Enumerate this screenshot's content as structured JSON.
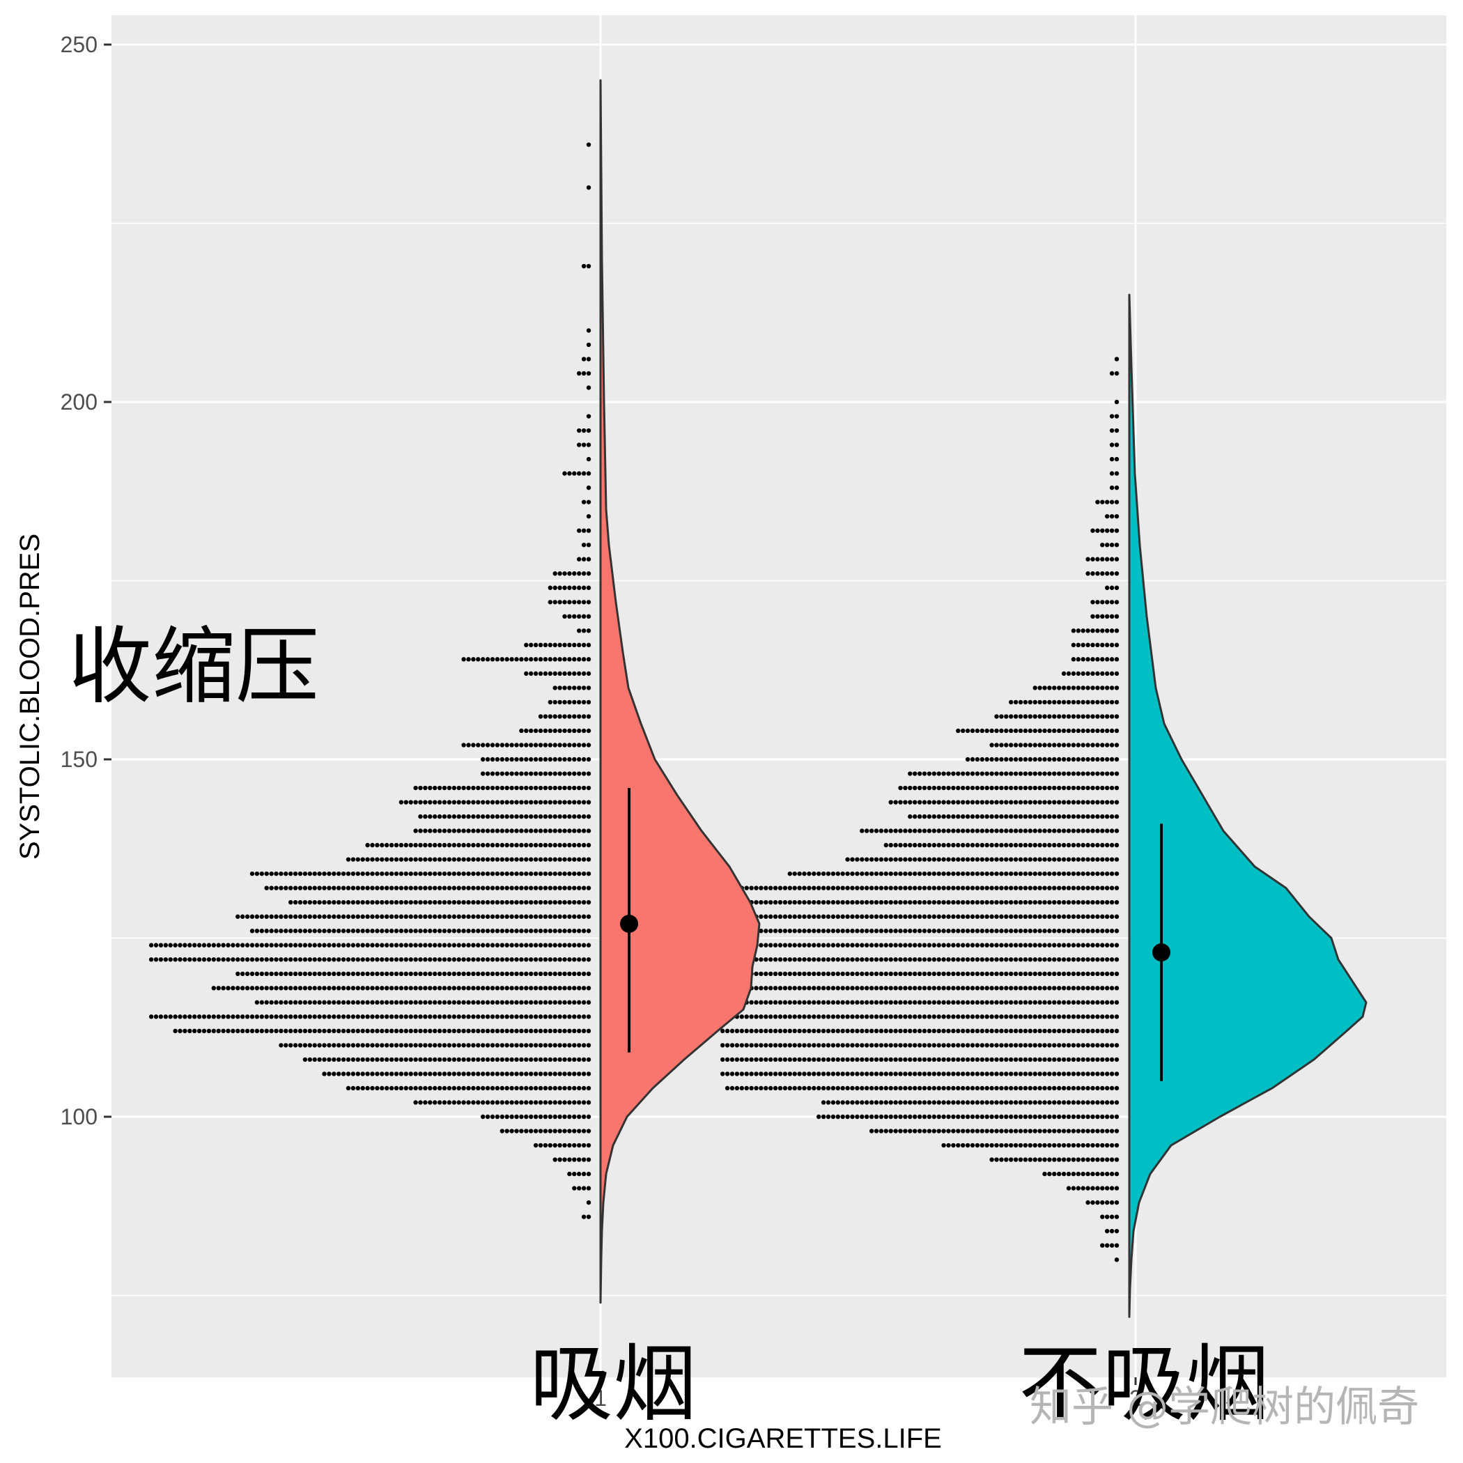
{
  "chart_data": {
    "type": "raincloud (half-violin + dotplot + mean±sd)",
    "title": "",
    "xlabel": "X100.CIGARETTES.LIFE",
    "ylabel": "SYSTOLIC.BLOOD.PRES",
    "y_annotation": "收缩压",
    "ylim": [
      70,
      253
    ],
    "y_ticks": [
      100,
      150,
      200,
      250
    ],
    "x_ticks": [
      "1",
      "2"
    ],
    "categories": [
      "吸烟",
      "不吸烟"
    ],
    "grid": true,
    "series": [
      {
        "name": "吸烟",
        "x_tick": "1",
        "color": "#F8766D",
        "mean": 127,
        "sd_low": 109,
        "sd_high": 146,
        "violin_range": [
          74,
          245
        ],
        "density_peak_value": 123,
        "dot_rows": [
          [
            236,
            1
          ],
          [
            230,
            1
          ],
          [
            219,
            2
          ],
          [
            210,
            1
          ],
          [
            208,
            1
          ],
          [
            206,
            2
          ],
          [
            204,
            3
          ],
          [
            202,
            1
          ],
          [
            198,
            1
          ],
          [
            196,
            3
          ],
          [
            194,
            3
          ],
          [
            192,
            1
          ],
          [
            190,
            6
          ],
          [
            188,
            1
          ],
          [
            186,
            2
          ],
          [
            184,
            1
          ],
          [
            182,
            3
          ],
          [
            180,
            2
          ],
          [
            178,
            3
          ],
          [
            176,
            8
          ],
          [
            174,
            9
          ],
          [
            172,
            9
          ],
          [
            170,
            6
          ],
          [
            168,
            3
          ],
          [
            166,
            14
          ],
          [
            164,
            27
          ],
          [
            162,
            14
          ],
          [
            160,
            8
          ],
          [
            158,
            9
          ],
          [
            156,
            11
          ],
          [
            154,
            15
          ],
          [
            152,
            27
          ],
          [
            150,
            23
          ],
          [
            148,
            23
          ],
          [
            146,
            37
          ],
          [
            144,
            40
          ],
          [
            142,
            36
          ],
          [
            140,
            37
          ],
          [
            138,
            47
          ],
          [
            136,
            51
          ],
          [
            134,
            71
          ],
          [
            132,
            68
          ],
          [
            130,
            63
          ],
          [
            128,
            74
          ],
          [
            126,
            71
          ],
          [
            124,
            92
          ],
          [
            122,
            92
          ],
          [
            120,
            74
          ],
          [
            118,
            79
          ],
          [
            116,
            70
          ],
          [
            114,
            92
          ],
          [
            112,
            87
          ],
          [
            110,
            65
          ],
          [
            108,
            60
          ],
          [
            106,
            56
          ],
          [
            104,
            51
          ],
          [
            102,
            37
          ],
          [
            100,
            23
          ],
          [
            98,
            19
          ],
          [
            96,
            12
          ],
          [
            94,
            8
          ],
          [
            92,
            5
          ],
          [
            90,
            4
          ],
          [
            88,
            1
          ],
          [
            86,
            2
          ]
        ]
      },
      {
        "name": "不吸烟",
        "x_tick": "2",
        "color": "#00BFC4",
        "mean": 123,
        "sd_low": 105,
        "sd_high": 141,
        "violin_range": [
          72,
          215
        ],
        "density_peak_value": 115,
        "dot_rows": [
          [
            206,
            1
          ],
          [
            204,
            2
          ],
          [
            200,
            1
          ],
          [
            198,
            2
          ],
          [
            196,
            2
          ],
          [
            194,
            2
          ],
          [
            192,
            2
          ],
          [
            190,
            2
          ],
          [
            188,
            2
          ],
          [
            186,
            5
          ],
          [
            184,
            3
          ],
          [
            182,
            6
          ],
          [
            180,
            4
          ],
          [
            178,
            7
          ],
          [
            176,
            7
          ],
          [
            174,
            3
          ],
          [
            172,
            6
          ],
          [
            170,
            6
          ],
          [
            168,
            10
          ],
          [
            166,
            10
          ],
          [
            164,
            10
          ],
          [
            162,
            12
          ],
          [
            160,
            18
          ],
          [
            158,
            23
          ],
          [
            156,
            26
          ],
          [
            154,
            34
          ],
          [
            152,
            27
          ],
          [
            150,
            32
          ],
          [
            148,
            44
          ],
          [
            146,
            46
          ],
          [
            144,
            48
          ],
          [
            142,
            44
          ],
          [
            140,
            54
          ],
          [
            138,
            49
          ],
          [
            136,
            57
          ],
          [
            134,
            69
          ],
          [
            132,
            83
          ],
          [
            130,
            83
          ],
          [
            128,
            83
          ],
          [
            126,
            83
          ],
          [
            124,
            83
          ],
          [
            122,
            83
          ],
          [
            120,
            83
          ],
          [
            118,
            83
          ],
          [
            116,
            83
          ],
          [
            114,
            83
          ],
          [
            112,
            83
          ],
          [
            110,
            83
          ],
          [
            108,
            83
          ],
          [
            106,
            83
          ],
          [
            104,
            82
          ],
          [
            102,
            62
          ],
          [
            100,
            63
          ],
          [
            98,
            52
          ],
          [
            96,
            37
          ],
          [
            94,
            27
          ],
          [
            92,
            16
          ],
          [
            90,
            11
          ],
          [
            88,
            7
          ],
          [
            86,
            4
          ],
          [
            84,
            3
          ],
          [
            82,
            4
          ],
          [
            80,
            1
          ]
        ]
      }
    ]
  },
  "axes": {
    "y_tick_labels": [
      "250",
      "200",
      "150",
      "100"
    ],
    "x_tick_labels": [
      "1",
      "2"
    ],
    "x_title": "X100.CIGARETTES.LIFE",
    "y_title": "SYSTOLIC.BLOOD.PRES"
  },
  "annotations": {
    "y_label_cn": "收缩压",
    "group1_label_cn": "吸烟",
    "group2_label_cn": "不吸烟",
    "watermark": "知乎 @学爬树的佩奇"
  },
  "colors": {
    "panel_bg": "#EBEBEB",
    "grid": "#FFFFFF",
    "group1": "#F8766D",
    "group2": "#00BFC4",
    "outline": "#333333",
    "dots": "#000000"
  }
}
